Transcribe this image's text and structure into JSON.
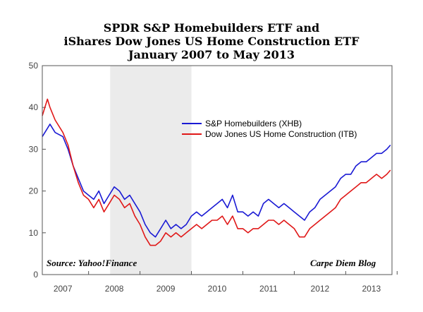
{
  "chart_data": {
    "type": "line",
    "title_lines": [
      "SPDR S&P Homebuilders ETF and",
      "iShares Dow Jones US Home Construction ETF",
      "January 2007 to May 2013"
    ],
    "xlabel": "",
    "ylabel": "",
    "ylim": [
      0,
      50
    ],
    "yticks": [
      0,
      10,
      20,
      30,
      40,
      50
    ],
    "xlim": [
      2006.6,
      2013.4
    ],
    "xtick_labels": [
      "2007",
      "2008",
      "2009",
      "2010",
      "2011",
      "2012",
      "2013"
    ],
    "recession_shading": [
      2007.92,
      2009.5
    ],
    "grid": false,
    "legend_position": "center-right",
    "source_note": "Source: Yahoo!Finance",
    "credit_note": "Carpe Diem Blog",
    "series": [
      {
        "name": "S&P Homebuilders (XHB)",
        "color": "#1a1ad4",
        "x": [
          2006.6,
          2006.7,
          2006.75,
          2006.85,
          2007.0,
          2007.1,
          2007.2,
          2007.3,
          2007.4,
          2007.5,
          2007.6,
          2007.7,
          2007.8,
          2007.9,
          2008.0,
          2008.1,
          2008.2,
          2008.3,
          2008.4,
          2008.5,
          2008.6,
          2008.7,
          2008.8,
          2008.9,
          2009.0,
          2009.1,
          2009.2,
          2009.3,
          2009.4,
          2009.5,
          2009.6,
          2009.7,
          2009.8,
          2009.9,
          2010.0,
          2010.1,
          2010.2,
          2010.3,
          2010.4,
          2010.5,
          2010.6,
          2010.7,
          2010.8,
          2010.9,
          2011.0,
          2011.1,
          2011.2,
          2011.3,
          2011.4,
          2011.5,
          2011.6,
          2011.7,
          2011.8,
          2011.9,
          2012.0,
          2012.1,
          2012.2,
          2012.3,
          2012.4,
          2012.5,
          2012.6,
          2012.7,
          2012.8,
          2012.9,
          2013.0,
          2013.1,
          2013.2,
          2013.3,
          2013.37
        ],
        "values": [
          33,
          35,
          36,
          34,
          33,
          30,
          26,
          23,
          20,
          19,
          18,
          20,
          17,
          19,
          21,
          20,
          18,
          19,
          17,
          15,
          12,
          10,
          9,
          11,
          13,
          11,
          12,
          11,
          12,
          14,
          15,
          14,
          15,
          16,
          17,
          18,
          16,
          19,
          15,
          15,
          14,
          15,
          14,
          17,
          18,
          17,
          16,
          17,
          16,
          15,
          14,
          13,
          15,
          16,
          18,
          19,
          20,
          21,
          23,
          24,
          24,
          26,
          27,
          27,
          28,
          29,
          29,
          30,
          31
        ]
      },
      {
        "name": "Dow Jones US Home Construction (ITB)",
        "color": "#e01818",
        "x": [
          2006.6,
          2006.7,
          2006.75,
          2006.85,
          2007.0,
          2007.1,
          2007.2,
          2007.3,
          2007.4,
          2007.5,
          2007.6,
          2007.7,
          2007.8,
          2007.9,
          2008.0,
          2008.1,
          2008.2,
          2008.3,
          2008.4,
          2008.5,
          2008.6,
          2008.7,
          2008.8,
          2008.9,
          2009.0,
          2009.1,
          2009.2,
          2009.3,
          2009.4,
          2009.5,
          2009.6,
          2009.7,
          2009.8,
          2009.9,
          2010.0,
          2010.1,
          2010.2,
          2010.3,
          2010.4,
          2010.5,
          2010.6,
          2010.7,
          2010.8,
          2010.9,
          2011.0,
          2011.1,
          2011.2,
          2011.3,
          2011.4,
          2011.5,
          2011.6,
          2011.7,
          2011.8,
          2011.9,
          2012.0,
          2012.1,
          2012.2,
          2012.3,
          2012.4,
          2012.5,
          2012.6,
          2012.7,
          2012.8,
          2012.9,
          2013.0,
          2013.1,
          2013.2,
          2013.3,
          2013.37
        ],
        "values": [
          38,
          42,
          40,
          37,
          34,
          31,
          26,
          22,
          19,
          18,
          16,
          18,
          15,
          17,
          19,
          18,
          16,
          17,
          14,
          12,
          9,
          7,
          7,
          8,
          10,
          9,
          10,
          9,
          10,
          11,
          12,
          11,
          12,
          13,
          13,
          14,
          12,
          14,
          11,
          11,
          10,
          11,
          11,
          12,
          13,
          13,
          12,
          13,
          12,
          11,
          9,
          9,
          11,
          12,
          13,
          14,
          15,
          16,
          18,
          19,
          20,
          21,
          22,
          22,
          23,
          24,
          23,
          24,
          25
        ]
      }
    ]
  }
}
